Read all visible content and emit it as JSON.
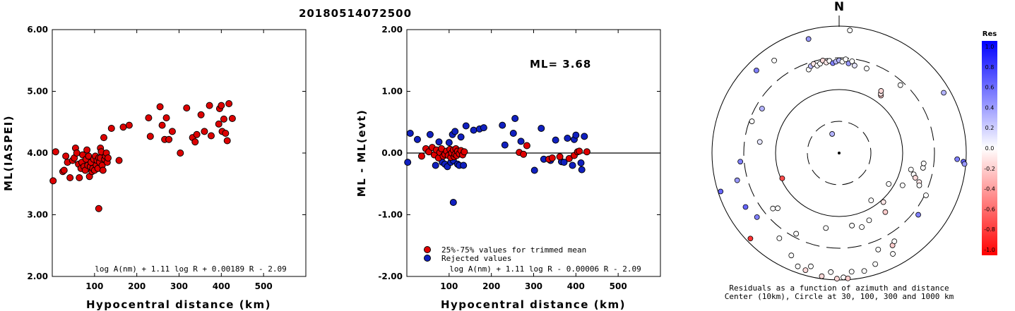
{
  "title": "20180514072500",
  "chart_data": [
    {
      "type": "scatter",
      "xlabel": "Hypocentral distance (km)",
      "ylabel": "ML(IASPEI)",
      "xlim": [
        0,
        600
      ],
      "ylim": [
        2.0,
        6.0
      ],
      "xticks": [
        "100",
        "200",
        "300",
        "400",
        "500"
      ],
      "yticks": [
        "2.00",
        "3.00",
        "4.00",
        "5.00",
        "6.00"
      ],
      "formula": "log A(nm) + 1.11 log R + 0.00189 R - 2.09",
      "points": [
        [
          2,
          3.55
        ],
        [
          8,
          4.02
        ],
        [
          25,
          3.7
        ],
        [
          28,
          3.72
        ],
        [
          32,
          3.95
        ],
        [
          36,
          3.85
        ],
        [
          42,
          3.6
        ],
        [
          48,
          3.88
        ],
        [
          52,
          3.92
        ],
        [
          55,
          4.08
        ],
        [
          58,
          4.0
        ],
        [
          62,
          3.82
        ],
        [
          64,
          3.6
        ],
        [
          68,
          3.75
        ],
        [
          70,
          3.85
        ],
        [
          72,
          3.97
        ],
        [
          75,
          3.78
        ],
        [
          78,
          3.72
        ],
        [
          80,
          3.9
        ],
        [
          82,
          4.05
        ],
        [
          84,
          3.8
        ],
        [
          86,
          3.95
        ],
        [
          88,
          3.62
        ],
        [
          90,
          3.78
        ],
        [
          92,
          3.85
        ],
        [
          94,
          3.7
        ],
        [
          96,
          3.75
        ],
        [
          98,
          3.9
        ],
        [
          100,
          3.72
        ],
        [
          102,
          3.95
        ],
        [
          104,
          3.8
        ],
        [
          106,
          3.88
        ],
        [
          108,
          3.75
        ],
        [
          110,
          3.1
        ],
        [
          110,
          3.92
        ],
        [
          112,
          3.85
        ],
        [
          114,
          4.08
        ],
        [
          114,
          3.92
        ],
        [
          116,
          4.02
        ],
        [
          118,
          3.8
        ],
        [
          120,
          3.72
        ],
        [
          122,
          4.25
        ],
        [
          124,
          3.9
        ],
        [
          126,
          3.95
        ],
        [
          128,
          4.0
        ],
        [
          130,
          3.85
        ],
        [
          132,
          3.92
        ],
        [
          140,
          4.4
        ],
        [
          158,
          3.88
        ],
        [
          168,
          4.42
        ],
        [
          182,
          4.45
        ],
        [
          228,
          4.57
        ],
        [
          232,
          4.27
        ],
        [
          255,
          4.75
        ],
        [
          260,
          4.45
        ],
        [
          266,
          4.22
        ],
        [
          270,
          4.57
        ],
        [
          276,
          4.22
        ],
        [
          284,
          4.35
        ],
        [
          303,
          4.0
        ],
        [
          318,
          4.73
        ],
        [
          332,
          4.25
        ],
        [
          338,
          4.18
        ],
        [
          342,
          4.3
        ],
        [
          352,
          4.62
        ],
        [
          360,
          4.35
        ],
        [
          372,
          4.77
        ],
        [
          376,
          4.28
        ],
        [
          394,
          4.47
        ],
        [
          396,
          4.72
        ],
        [
          400,
          4.77
        ],
        [
          402,
          4.35
        ],
        [
          406,
          4.55
        ],
        [
          410,
          4.32
        ],
        [
          414,
          4.2
        ],
        [
          418,
          4.8
        ],
        [
          426,
          4.56
        ]
      ]
    },
    {
      "type": "scatter",
      "xlabel": "Hypocentral distance (km)",
      "ylabel": "ML - ML(evt)",
      "xlim": [
        0,
        600
      ],
      "ylim": [
        -2.0,
        2.0
      ],
      "xticks": [
        "100",
        "200",
        "300",
        "400",
        "500"
      ],
      "yticks": [
        "-2.00",
        "-1.00",
        "0.00",
        "1.00",
        "2.00"
      ],
      "ml_label": "ML= 3.68",
      "formula": "log A(nm) + 1.11 log R - 0.00006 R - 2.09",
      "legend": {
        "trimmed": "25%-75% values for trimmed mean",
        "rejected": "Rejected values"
      },
      "colors": {
        "trimmed": "#e00000",
        "rejected": "#1020c0"
      },
      "trimmed_points": [
        [
          35,
          -0.05
        ],
        [
          45,
          0.07
        ],
        [
          52,
          0.02
        ],
        [
          60,
          0.09
        ],
        [
          65,
          -0.03
        ],
        [
          70,
          0.05
        ],
        [
          75,
          -0.08
        ],
        [
          78,
          0.01
        ],
        [
          82,
          0.07
        ],
        [
          86,
          -0.05
        ],
        [
          90,
          -0.02
        ],
        [
          94,
          0.03
        ],
        [
          98,
          -0.04
        ],
        [
          102,
          0.06
        ],
        [
          104,
          -0.07
        ],
        [
          106,
          0.0
        ],
        [
          110,
          0.05
        ],
        [
          112,
          -0.06
        ],
        [
          114,
          -0.02
        ],
        [
          116,
          0.07
        ],
        [
          118,
          -0.04
        ],
        [
          120,
          0.03
        ],
        [
          124,
          -0.01
        ],
        [
          128,
          0.04
        ],
        [
          132,
          -0.03
        ],
        [
          136,
          0.02
        ],
        [
          266,
          0.01
        ],
        [
          276,
          -0.02
        ],
        [
          284,
          0.12
        ],
        [
          336,
          -0.1
        ],
        [
          344,
          -0.08
        ],
        [
          362,
          -0.06
        ],
        [
          384,
          -0.09
        ],
        [
          396,
          -0.04
        ],
        [
          404,
          0.02
        ],
        [
          408,
          0.03
        ],
        [
          426,
          0.02
        ]
      ],
      "rejected_points": [
        [
          2,
          -0.15
        ],
        [
          8,
          0.32
        ],
        [
          25,
          0.22
        ],
        [
          55,
          0.3
        ],
        [
          68,
          -0.2
        ],
        [
          76,
          0.18
        ],
        [
          84,
          -0.15
        ],
        [
          90,
          -0.18
        ],
        [
          96,
          -0.22
        ],
        [
          100,
          0.17
        ],
        [
          104,
          -0.15
        ],
        [
          108,
          0.3
        ],
        [
          110,
          -0.8
        ],
        [
          110,
          -0.12
        ],
        [
          114,
          0.35
        ],
        [
          120,
          -0.18
        ],
        [
          124,
          -0.2
        ],
        [
          128,
          0.26
        ],
        [
          134,
          -0.2
        ],
        [
          140,
          0.44
        ],
        [
          158,
          0.37
        ],
        [
          172,
          0.39
        ],
        [
          182,
          0.41
        ],
        [
          226,
          0.45
        ],
        [
          232,
          0.13
        ],
        [
          252,
          0.32
        ],
        [
          256,
          0.56
        ],
        [
          270,
          0.19
        ],
        [
          302,
          -0.28
        ],
        [
          318,
          0.4
        ],
        [
          324,
          -0.1
        ],
        [
          340,
          -0.12
        ],
        [
          352,
          0.21
        ],
        [
          366,
          -0.14
        ],
        [
          372,
          -0.15
        ],
        [
          380,
          0.24
        ],
        [
          392,
          -0.2
        ],
        [
          396,
          0.22
        ],
        [
          400,
          0.29
        ],
        [
          412,
          -0.16
        ],
        [
          414,
          -0.27
        ],
        [
          420,
          0.27
        ]
      ]
    },
    {
      "type": "polar_scatter",
      "north_label": "N",
      "caption_line1": "Residuals as a function of azimuth and distance",
      "caption_line2": "Center (10km), Circle at 30, 100, 300 and 1000 km",
      "colorbar": {
        "title": "Res",
        "ticks": [
          "1.0",
          "0.8",
          "0.6",
          "0.4",
          "0.2",
          "0.0",
          "-0.2",
          "-0.4",
          "-0.6",
          "-0.8",
          "-1.0"
        ],
        "max_color": "#0000ff",
        "mid_color": "#ffffff",
        "min_color": "#ff0000"
      },
      "points": [
        [
          345,
          0.93,
          0.4
        ],
        [
          5,
          0.97,
          0.0
        ],
        [
          340,
          0.7,
          0.0
        ],
        [
          342,
          0.72,
          0.25
        ],
        [
          344,
          0.73,
          -0.1
        ],
        [
          346,
          0.71,
          0.0
        ],
        [
          348,
          0.72,
          0.0
        ],
        [
          350,
          0.74,
          -0.15
        ],
        [
          352,
          0.72,
          -0.1
        ],
        [
          354,
          0.73,
          0.0
        ],
        [
          356,
          0.71,
          0.5
        ],
        [
          358,
          0.72,
          0.3
        ],
        [
          360,
          0.73,
          0.3
        ],
        [
          2,
          0.72,
          0.0
        ],
        [
          4,
          0.74,
          0.0
        ],
        [
          6,
          0.71,
          0.4
        ],
        [
          8,
          0.73,
          0.0
        ],
        [
          10,
          0.7,
          0.1
        ],
        [
          315,
          0.92,
          0.5
        ],
        [
          325,
          0.89,
          0.0
        ],
        [
          300,
          0.7,
          0.3
        ],
        [
          278,
          0.63,
          0.1
        ],
        [
          290,
          0.73,
          0.0
        ],
        [
          265,
          0.78,
          0.5
        ],
        [
          252,
          0.98,
          0.6
        ],
        [
          255,
          0.83,
          0.4
        ],
        [
          240,
          0.85,
          0.6
        ],
        [
          232,
          0.82,
          0.5
        ],
        [
          226,
          0.97,
          -0.8
        ],
        [
          246,
          0.49,
          -0.7
        ],
        [
          228,
          0.65,
          0.0
        ],
        [
          215,
          0.82,
          0.0
        ],
        [
          205,
          0.89,
          0.0
        ],
        [
          200,
          0.95,
          0.0
        ],
        [
          196,
          0.96,
          -0.15
        ],
        [
          194,
          0.92,
          0.0
        ],
        [
          188,
          0.98,
          -0.15
        ],
        [
          184,
          0.94,
          0.0
        ],
        [
          181,
          0.99,
          -0.15
        ],
        [
          178,
          0.98,
          0.0
        ],
        [
          176,
          0.99,
          -0.2
        ],
        [
          174,
          0.94,
          0.0
        ],
        [
          168,
          0.95,
          0.0
        ],
        [
          158,
          0.82,
          0.0
        ],
        [
          150,
          0.84,
          -0.2
        ],
        [
          190,
          0.6,
          0.0
        ],
        [
          170,
          0.58,
          0.0
        ],
        [
          163,
          0.61,
          0.0
        ],
        [
          156,
          0.58,
          0.0
        ],
        [
          142,
          0.59,
          -0.2
        ],
        [
          138,
          0.52,
          -0.1
        ],
        [
          128,
          0.79,
          0.5
        ],
        [
          116,
          0.76,
          0.0
        ],
        [
          103,
          0.58,
          0.0
        ],
        [
          106,
          0.61,
          0.0
        ],
        [
          108,
          0.63,
          -0.15
        ],
        [
          110,
          0.67,
          -0.1
        ],
        [
          112,
          0.68,
          0.0
        ],
        [
          117,
          0.56,
          0.0
        ],
        [
          122,
          0.46,
          0.0
        ],
        [
          146,
          0.45,
          0.0
        ],
        [
          100,
          0.67,
          0.0
        ],
        [
          97,
          0.67,
          0.0
        ],
        [
          93,
          0.93,
          0.5
        ],
        [
          94,
          0.98,
          0.6
        ],
        [
          95,
          0.99,
          0.4
        ],
        [
          60,
          0.95,
          0.3
        ],
        [
          42,
          0.72,
          0.0
        ],
        [
          36,
          0.56,
          -0.2
        ],
        [
          35,
          0.57,
          -0.1
        ],
        [
          34,
          0.59,
          -0.15
        ],
        [
          18,
          0.7,
          0.0
        ],
        [
          340,
          0.16,
          0.3
        ],
        [
          148,
          0.82,
          0.0
        ],
        [
          162,
          0.92,
          0.0
        ],
        [
          152,
          0.9,
          0.0
        ],
        [
          230,
          0.68,
          0.0
        ],
        [
          208,
          0.72,
          0.0
        ]
      ]
    }
  ]
}
